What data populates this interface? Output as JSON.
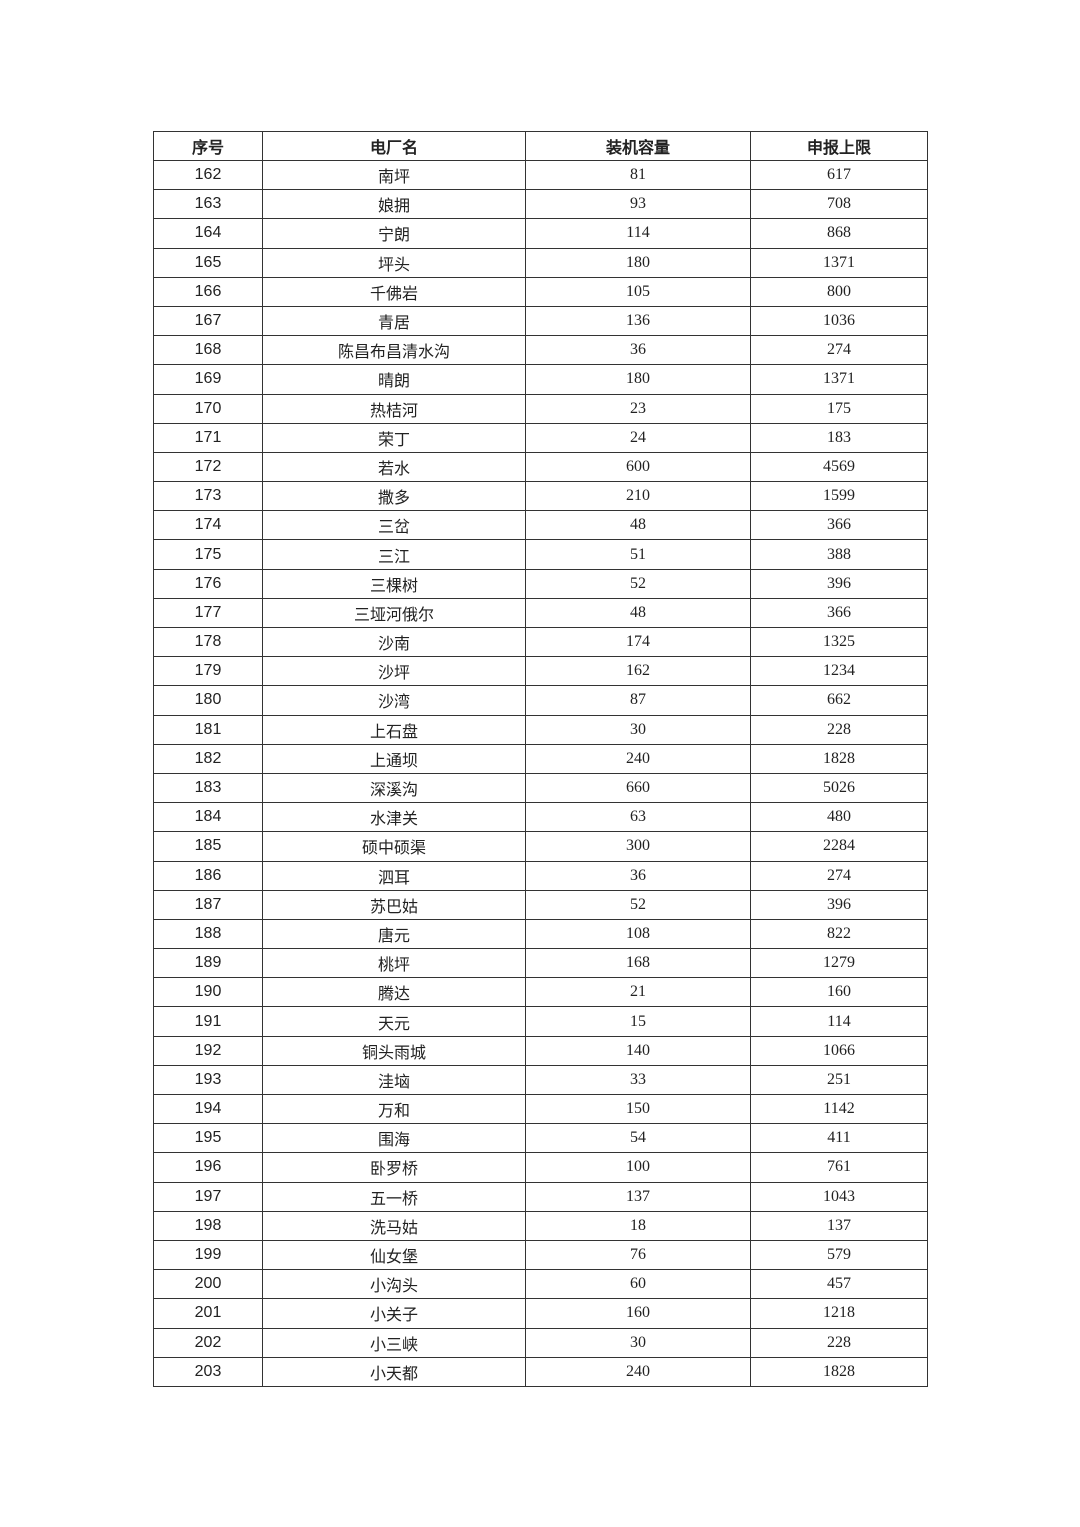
{
  "table": {
    "headers": [
      "序号",
      "电厂名",
      "装机容量",
      "申报上限"
    ],
    "rows": [
      [
        "162",
        "南坪",
        "81",
        "617"
      ],
      [
        "163",
        "娘拥",
        "93",
        "708"
      ],
      [
        "164",
        "宁朗",
        "114",
        "868"
      ],
      [
        "165",
        "坪头",
        "180",
        "1371"
      ],
      [
        "166",
        "千佛岩",
        "105",
        "800"
      ],
      [
        "167",
        "青居",
        "136",
        "1036"
      ],
      [
        "168",
        "陈昌布昌清水沟",
        "36",
        "274"
      ],
      [
        "169",
        "晴朗",
        "180",
        "1371"
      ],
      [
        "170",
        "热桔河",
        "23",
        "175"
      ],
      [
        "171",
        "荣丁",
        "24",
        "183"
      ],
      [
        "172",
        "若水",
        "600",
        "4569"
      ],
      [
        "173",
        "撒多",
        "210",
        "1599"
      ],
      [
        "174",
        "三岔",
        "48",
        "366"
      ],
      [
        "175",
        "三江",
        "51",
        "388"
      ],
      [
        "176",
        "三棵树",
        "52",
        "396"
      ],
      [
        "177",
        "三垭河俄尔",
        "48",
        "366"
      ],
      [
        "178",
        "沙南",
        "174",
        "1325"
      ],
      [
        "179",
        "沙坪",
        "162",
        "1234"
      ],
      [
        "180",
        "沙湾",
        "87",
        "662"
      ],
      [
        "181",
        "上石盘",
        "30",
        "228"
      ],
      [
        "182",
        "上通坝",
        "240",
        "1828"
      ],
      [
        "183",
        "深溪沟",
        "660",
        "5026"
      ],
      [
        "184",
        "水津关",
        "63",
        "480"
      ],
      [
        "185",
        "硕中硕渠",
        "300",
        "2284"
      ],
      [
        "186",
        "泗耳",
        "36",
        "274"
      ],
      [
        "187",
        "苏巴姑",
        "52",
        "396"
      ],
      [
        "188",
        "唐元",
        "108",
        "822"
      ],
      [
        "189",
        "桃坪",
        "168",
        "1279"
      ],
      [
        "190",
        "腾达",
        "21",
        "160"
      ],
      [
        "191",
        "天元",
        "15",
        "114"
      ],
      [
        "192",
        "铜头雨城",
        "140",
        "1066"
      ],
      [
        "193",
        "洼垴",
        "33",
        "251"
      ],
      [
        "194",
        "万和",
        "150",
        "1142"
      ],
      [
        "195",
        "围海",
        "54",
        "411"
      ],
      [
        "196",
        "卧罗桥",
        "100",
        "761"
      ],
      [
        "197",
        "五一桥",
        "137",
        "1043"
      ],
      [
        "198",
        "洗马姑",
        "18",
        "137"
      ],
      [
        "199",
        "仙女堡",
        "76",
        "579"
      ],
      [
        "200",
        "小沟头",
        "60",
        "457"
      ],
      [
        "201",
        "小关子",
        "160",
        "1218"
      ],
      [
        "202",
        "小三峡",
        "30",
        "228"
      ],
      [
        "203",
        "小天都",
        "240",
        "1828"
      ]
    ]
  }
}
